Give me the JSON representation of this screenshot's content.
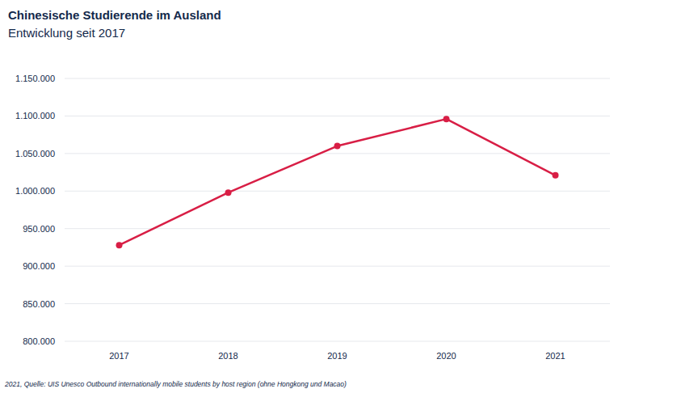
{
  "chart_data": {
    "type": "line",
    "title": "Chinesische Studierende im Ausland",
    "subtitle": "Entwicklung seit 2017",
    "source": "2021, Quelle: UIS Unesco Outbound internationally mobile students by host region (ohne Hongkong und Macao)",
    "categories": [
      "2017",
      "2018",
      "2019",
      "2020",
      "2021"
    ],
    "values": [
      928000,
      998000,
      1060000,
      1096000,
      1021000
    ],
    "color": "#d81e45",
    "marker": "circle",
    "ylim": [
      800000,
      1150000
    ],
    "yticks": [
      {
        "value": 800000,
        "label": "800.000"
      },
      {
        "value": 850000,
        "label": "850.000"
      },
      {
        "value": 900000,
        "label": "900.000"
      },
      {
        "value": 950000,
        "label": "950.000"
      },
      {
        "value": 1000000,
        "label": "1.000.000"
      },
      {
        "value": 1050000,
        "label": "1.050.000"
      },
      {
        "value": 1100000,
        "label": "1.100.000"
      },
      {
        "value": 1150000,
        "label": "1.150.000"
      }
    ],
    "grid": true
  }
}
